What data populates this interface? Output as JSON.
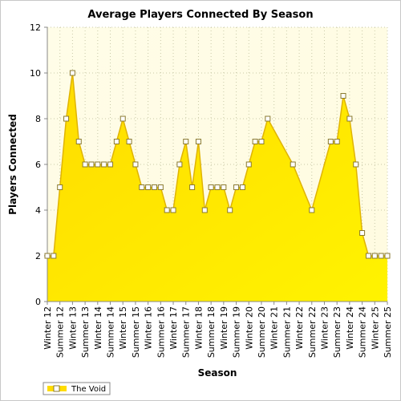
{
  "colors": {
    "plot_bg_top": "#fffde8",
    "plot_bg_bottom": "#fffbe0",
    "grid": "#c9c9a8",
    "area_top": "#ffdc00",
    "area_bottom": "#fff300",
    "line": "#e0b400",
    "marker_fill": "#ffffff",
    "marker_stroke": "#8a7a30"
  },
  "chart_data": {
    "type": "area",
    "title": "Average Players Connected By Season",
    "xlabel": "Season",
    "ylabel": "Players Connected",
    "ylim": [
      0,
      12
    ],
    "yticks": [
      0,
      2,
      4,
      6,
      8,
      10,
      12
    ],
    "grid": true,
    "legend_position": "bottom-left",
    "categories": [
      "Winter 12",
      "Summer 12",
      "Winter 13",
      "Summer 13",
      "Winter 14",
      "Summer 14",
      "Winter 15",
      "Summer 15",
      "Winter 16",
      "Summer 16",
      "Winter 17",
      "Summer 17",
      "Winter 18",
      "Summer 18",
      "Winter 19",
      "Summer 19",
      "Winter 20",
      "Summer 20",
      "Winter 21",
      "Summer 21",
      "Winter 22",
      "Summer 22",
      "Winter 23",
      "Summer 23",
      "Winter 24",
      "Summer 24",
      "Winter 25",
      "Summer 25"
    ],
    "series": [
      {
        "name": "The Void",
        "points": [
          {
            "x": 0.0,
            "y": 2
          },
          {
            "x": 0.5,
            "y": 2
          },
          {
            "x": 1.0,
            "y": 5
          },
          {
            "x": 1.5,
            "y": 8
          },
          {
            "x": 2.0,
            "y": 10
          },
          {
            "x": 2.5,
            "y": 7
          },
          {
            "x": 3.0,
            "y": 6
          },
          {
            "x": 3.5,
            "y": 6
          },
          {
            "x": 4.0,
            "y": 6
          },
          {
            "x": 4.5,
            "y": 6
          },
          {
            "x": 5.0,
            "y": 6
          },
          {
            "x": 5.5,
            "y": 7
          },
          {
            "x": 6.0,
            "y": 8
          },
          {
            "x": 6.5,
            "y": 7
          },
          {
            "x": 7.0,
            "y": 6
          },
          {
            "x": 7.5,
            "y": 5
          },
          {
            "x": 8.0,
            "y": 5
          },
          {
            "x": 8.5,
            "y": 5
          },
          {
            "x": 9.0,
            "y": 5
          },
          {
            "x": 9.5,
            "y": 4
          },
          {
            "x": 10.0,
            "y": 4
          },
          {
            "x": 10.5,
            "y": 6
          },
          {
            "x": 11.0,
            "y": 7
          },
          {
            "x": 11.5,
            "y": 5
          },
          {
            "x": 12.0,
            "y": 7
          },
          {
            "x": 12.5,
            "y": 4
          },
          {
            "x": 13.0,
            "y": 5
          },
          {
            "x": 13.5,
            "y": 5
          },
          {
            "x": 14.0,
            "y": 5
          },
          {
            "x": 14.5,
            "y": 4
          },
          {
            "x": 15.0,
            "y": 5
          },
          {
            "x": 15.5,
            "y": 5
          },
          {
            "x": 16.0,
            "y": 6
          },
          {
            "x": 16.5,
            "y": 7
          },
          {
            "x": 17.0,
            "y": 7
          },
          {
            "x": 17.5,
            "y": 8
          },
          {
            "x": 19.5,
            "y": 6
          },
          {
            "x": 21.0,
            "y": 4
          },
          {
            "x": 22.5,
            "y": 7
          },
          {
            "x": 23.0,
            "y": 7
          },
          {
            "x": 23.5,
            "y": 9
          },
          {
            "x": 24.0,
            "y": 8
          },
          {
            "x": 24.5,
            "y": 6
          },
          {
            "x": 25.0,
            "y": 3
          },
          {
            "x": 25.5,
            "y": 2
          },
          {
            "x": 26.0,
            "y": 2
          },
          {
            "x": 26.5,
            "y": 2
          },
          {
            "x": 27.0,
            "y": 2
          }
        ]
      }
    ]
  }
}
